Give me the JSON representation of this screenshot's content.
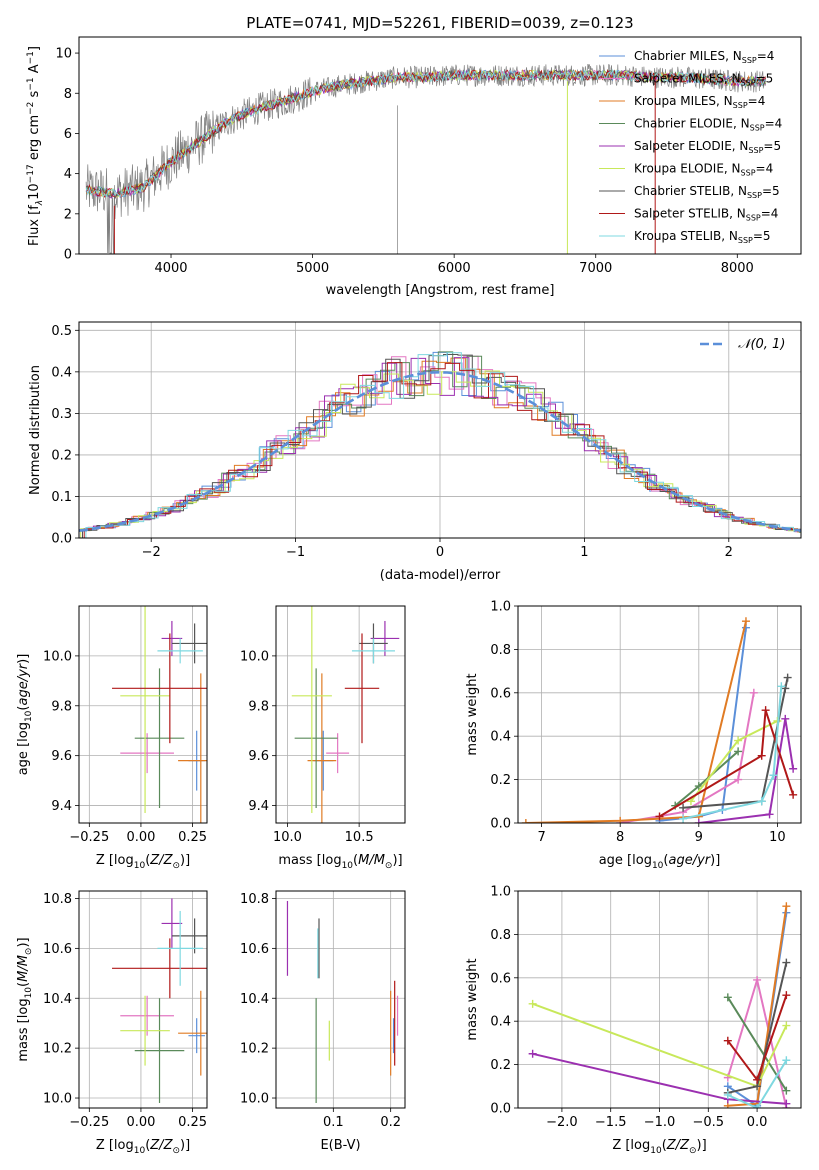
{
  "figure_title": "PLATE=0741, MJD=52261, FIBERID=0039, z=0.123",
  "colors": {
    "Chabrier MILES": "#5b8fd9",
    "Salpeter MILES": "#e377c2",
    "Kroupa MILES": "#e07b24",
    "Chabrier ELODIE": "#5a8a5a",
    "Salpeter ELODIE": "#9b30b0",
    "Kroupa ELODIE": "#c8e85a",
    "Chabrier STELIB": "#555555",
    "Salpeter STELIB": "#b01818",
    "Kroupa STELIB": "#7fd8e0",
    "data": "#808080",
    "normal": "#5b8fd9"
  },
  "chart_data": [
    {
      "id": "spectrum",
      "type": "line",
      "xlabel": "wavelength [Angstrom, rest frame]",
      "ylabel": "Flux [f_λ 10^-17 erg cm^-2 s^-1 A^-1]",
      "xlim": [
        3350,
        8450
      ],
      "ylim": [
        0,
        10.8
      ],
      "xticks": [
        4000,
        5000,
        6000,
        7000,
        8000
      ],
      "yticks": [
        0,
        2,
        4,
        6,
        8,
        10
      ],
      "legend_position": "upper-right",
      "data_spectrum_envelope": {
        "x": [
          3400,
          3600,
          3800,
          4000,
          4200,
          4400,
          4600,
          4800,
          5000,
          5200,
          5400,
          5600,
          5800,
          6000,
          6200,
          6400,
          6600,
          6800,
          7000,
          7200,
          7400,
          7600,
          7800,
          8000,
          8200
        ],
        "y": [
          3.2,
          3.0,
          3.3,
          4.6,
          5.6,
          6.6,
          7.2,
          7.6,
          8.1,
          8.4,
          8.6,
          8.8,
          8.8,
          8.9,
          8.9,
          8.9,
          8.9,
          8.9,
          8.9,
          8.9,
          8.8,
          8.8,
          8.7,
          8.6,
          8.6
        ]
      },
      "series": [
        {
          "name": "Chabrier MILES, N_SSP=4",
          "label_main": "Chabrier MILES, N",
          "label_sub": "SSP",
          "label_tail": "=4"
        },
        {
          "name": "Salpeter MILES, N_SSP=5",
          "label_main": "Salpeter MILES, N",
          "label_sub": "SSP",
          "label_tail": "=5"
        },
        {
          "name": "Kroupa MILES, N_SSP=4",
          "label_main": "Kroupa MILES, N",
          "label_sub": "SSP",
          "label_tail": "=4"
        },
        {
          "name": "Chabrier ELODIE, N_SSP=4",
          "label_main": "Chabrier ELODIE, N",
          "label_sub": "SSP",
          "label_tail": "=4"
        },
        {
          "name": "Salpeter ELODIE, N_SSP=5",
          "label_main": "Salpeter ELODIE, N",
          "label_sub": "SSP",
          "label_tail": "=5"
        },
        {
          "name": "Kroupa ELODIE, N_SSP=4",
          "label_main": "Kroupa ELODIE, N",
          "label_sub": "SSP",
          "label_tail": "=4"
        },
        {
          "name": "Chabrier STELIB, N_SSP=5",
          "label_main": "Chabrier STELIB, N",
          "label_sub": "SSP",
          "label_tail": "=5"
        },
        {
          "name": "Salpeter STELIB, N_SSP=4",
          "label_main": "Salpeter STELIB, N",
          "label_sub": "SSP",
          "label_tail": "=4"
        },
        {
          "name": "Kroupa STELIB, N_SSP=5",
          "label_main": "Kroupa STELIB, N",
          "label_sub": "SSP",
          "label_tail": "=5"
        }
      ]
    },
    {
      "id": "residuals",
      "type": "line",
      "xlabel": "(data-model)/error",
      "ylabel": "Normed distribution",
      "xlim": [
        -2.5,
        2.5
      ],
      "ylim": [
        0,
        0.52
      ],
      "xticks": [
        -2,
        -1,
        0,
        1,
        2
      ],
      "yticks": [
        0.0,
        0.1,
        0.2,
        0.3,
        0.4,
        0.5
      ],
      "grid": true,
      "legend_position": "upper-right",
      "legend_label": "𝒩(0, 1)",
      "reference_curve": "normal(0,1) density"
    },
    {
      "id": "age_vs_Z",
      "type": "scatter",
      "xlabel": "Z [log10(Z/Z⊙)]",
      "ylabel": "age  [log10(age/yr)]",
      "xlim": [
        -0.3,
        0.32
      ],
      "ylim": [
        9.33,
        10.2
      ],
      "xticks": [
        -0.25,
        0.0,
        0.25
      ],
      "yticks": [
        9.4,
        9.6,
        9.8,
        10.0
      ],
      "grid": true,
      "errorbars": [
        {
          "series": "Chabrier MILES",
          "x": 0.27,
          "xerr": 0.04,
          "y": 9.58,
          "yerr": 0.12
        },
        {
          "series": "Salpeter MILES",
          "x": 0.03,
          "xerr": 0.13,
          "y": 9.61,
          "yerr": 0.08
        },
        {
          "series": "Kroupa MILES",
          "x": 0.29,
          "xerr": 0.11,
          "y": 9.58,
          "yerr": 0.35
        },
        {
          "series": "Chabrier ELODIE",
          "x": 0.09,
          "xerr": 0.12,
          "y": 9.67,
          "yerr": 0.28
        },
        {
          "series": "Salpeter ELODIE",
          "x": 0.15,
          "xerr": 0.05,
          "y": 10.07,
          "yerr": 0.07
        },
        {
          "series": "Kroupa ELODIE",
          "x": 0.02,
          "xerr": 0.12,
          "y": 9.84,
          "yerr": 0.47
        },
        {
          "series": "Chabrier STELIB",
          "x": 0.26,
          "xerr": 0.11,
          "y": 10.05,
          "yerr": 0.08
        },
        {
          "series": "Salpeter STELIB",
          "x": 0.14,
          "xerr": 0.28,
          "y": 9.87,
          "yerr": 0.22
        },
        {
          "series": "Kroupa STELIB",
          "x": 0.19,
          "xerr": 0.11,
          "y": 10.02,
          "yerr": 0.05
        }
      ]
    },
    {
      "id": "age_vs_mass",
      "type": "scatter",
      "xlabel": "mass [log10(M/M⊙)]",
      "ylabel": "",
      "xlim": [
        9.92,
        10.82
      ],
      "ylim": [
        9.33,
        10.2
      ],
      "xticks": [
        10.0,
        10.5
      ],
      "yticks": [
        9.4,
        9.6,
        9.8,
        10.0
      ],
      "grid": true,
      "errorbars": [
        {
          "series": "Chabrier MILES",
          "x": 10.25,
          "xerr": 0.07,
          "y": 9.58,
          "yerr": 0.12
        },
        {
          "series": "Salpeter MILES",
          "x": 10.35,
          "xerr": 0.08,
          "y": 9.61,
          "yerr": 0.08
        },
        {
          "series": "Kroupa MILES",
          "x": 10.24,
          "xerr": 0.1,
          "y": 9.58,
          "yerr": 0.35
        },
        {
          "series": "Chabrier ELODIE",
          "x": 10.2,
          "xerr": 0.15,
          "y": 9.67,
          "yerr": 0.28
        },
        {
          "series": "Salpeter ELODIE",
          "x": 10.68,
          "xerr": 0.1,
          "y": 10.07,
          "yerr": 0.07
        },
        {
          "series": "Kroupa ELODIE",
          "x": 10.17,
          "xerr": 0.14,
          "y": 9.84,
          "yerr": 0.47
        },
        {
          "series": "Chabrier STELIB",
          "x": 10.6,
          "xerr": 0.1,
          "y": 10.05,
          "yerr": 0.08
        },
        {
          "series": "Salpeter STELIB",
          "x": 10.52,
          "xerr": 0.12,
          "y": 9.87,
          "yerr": 0.22
        },
        {
          "series": "Kroupa STELIB",
          "x": 10.6,
          "xerr": 0.15,
          "y": 10.02,
          "yerr": 0.05
        }
      ]
    },
    {
      "id": "mass_weight_vs_age",
      "type": "line",
      "xlabel": "age  [log10(age/yr)]",
      "ylabel": "mass weight",
      "xlim": [
        6.7,
        10.3
      ],
      "ylim": [
        0,
        1.0
      ],
      "xticks": [
        7,
        8,
        9,
        10
      ],
      "yticks": [
        0.0,
        0.2,
        0.4,
        0.6,
        0.8,
        1.0
      ],
      "grid": true,
      "series": [
        {
          "name": "Chabrier MILES",
          "x": [
            8.5,
            9.0,
            9.3,
            9.6
          ],
          "y": [
            0.01,
            0.03,
            0.06,
            0.9
          ]
        },
        {
          "name": "Salpeter MILES",
          "x": [
            8.0,
            8.8,
            9.5,
            9.7
          ],
          "y": [
            0.0,
            0.05,
            0.2,
            0.6
          ]
        },
        {
          "name": "Kroupa MILES",
          "x": [
            6.8,
            8.0,
            9.0,
            9.6
          ],
          "y": [
            0.0,
            0.01,
            0.03,
            0.93
          ]
        },
        {
          "name": "Chabrier ELODIE",
          "x": [
            8.7,
            9.0,
            9.5
          ],
          "y": [
            0.08,
            0.17,
            0.33
          ]
        },
        {
          "name": "Salpeter ELODIE",
          "x": [
            9.0,
            9.9,
            10.1,
            10.2
          ],
          "y": [
            0.0,
            0.04,
            0.48,
            0.25
          ]
        },
        {
          "name": "Kroupa ELODIE",
          "x": [
            8.9,
            9.5,
            10.0
          ],
          "y": [
            0.1,
            0.38,
            0.47
          ]
        },
        {
          "name": "Chabrier STELIB",
          "x": [
            8.8,
            9.8,
            10.1,
            10.13
          ],
          "y": [
            0.07,
            0.1,
            0.62,
            0.67
          ]
        },
        {
          "name": "Salpeter STELIB",
          "x": [
            8.5,
            9.8,
            9.85,
            10.2
          ],
          "y": [
            0.03,
            0.31,
            0.52,
            0.13
          ]
        },
        {
          "name": "Kroupa STELIB",
          "x": [
            8.8,
            9.8,
            9.95,
            10.05
          ],
          "y": [
            0.02,
            0.1,
            0.22,
            0.63
          ]
        }
      ]
    },
    {
      "id": "mass_vs_Z",
      "type": "scatter",
      "xlabel": "Z [log10(Z/Z⊙)]",
      "ylabel": "mass [log10(M/M⊙)]",
      "xlim": [
        -0.3,
        0.32
      ],
      "ylim": [
        9.96,
        10.83
      ],
      "xticks": [
        -0.25,
        0.0,
        0.25
      ],
      "yticks": [
        10.0,
        10.2,
        10.4,
        10.6,
        10.8
      ],
      "grid": true,
      "errorbars": [
        {
          "series": "Chabrier MILES",
          "x": 0.27,
          "xerr": 0.04,
          "y": 10.25,
          "yerr": 0.07
        },
        {
          "series": "Salpeter MILES",
          "x": 0.03,
          "xerr": 0.13,
          "y": 10.33,
          "yerr": 0.08
        },
        {
          "series": "Kroupa MILES",
          "x": 0.29,
          "xerr": 0.11,
          "y": 10.26,
          "yerr": 0.17
        },
        {
          "series": "Chabrier ELODIE",
          "x": 0.09,
          "xerr": 0.12,
          "y": 10.19,
          "yerr": 0.21
        },
        {
          "series": "Salpeter ELODIE",
          "x": 0.15,
          "xerr": 0.05,
          "y": 10.7,
          "yerr": 0.1
        },
        {
          "series": "Kroupa ELODIE",
          "x": 0.02,
          "xerr": 0.12,
          "y": 10.27,
          "yerr": 0.14
        },
        {
          "series": "Chabrier STELIB",
          "x": 0.26,
          "xerr": 0.11,
          "y": 10.65,
          "yerr": 0.07
        },
        {
          "series": "Salpeter STELIB",
          "x": 0.14,
          "xerr": 0.28,
          "y": 10.52,
          "yerr": 0.12
        },
        {
          "series": "Kroupa STELIB",
          "x": 0.19,
          "xerr": 0.11,
          "y": 10.6,
          "yerr": 0.15
        }
      ]
    },
    {
      "id": "mass_vs_EBV",
      "type": "scatter",
      "xlabel": "E(B-V)",
      "ylabel": "",
      "xlim": [
        0.0,
        0.225
      ],
      "ylim": [
        9.96,
        10.83
      ],
      "xticks": [
        0.1,
        0.2
      ],
      "yticks": [
        10.0,
        10.2,
        10.4,
        10.6,
        10.8
      ],
      "grid": true,
      "errorbars": [
        {
          "series": "Chabrier MILES",
          "x": 0.205,
          "y": 10.25,
          "yerr": 0.07
        },
        {
          "series": "Salpeter MILES",
          "x": 0.212,
          "y": 10.33,
          "yerr": 0.08
        },
        {
          "series": "Kroupa MILES",
          "x": 0.2,
          "y": 10.26,
          "yerr": 0.17
        },
        {
          "series": "Chabrier ELODIE",
          "x": 0.07,
          "y": 10.19,
          "yerr": 0.21
        },
        {
          "series": "Salpeter ELODIE",
          "x": 0.02,
          "y": 10.64,
          "yerr": 0.15
        },
        {
          "series": "Kroupa ELODIE",
          "x": 0.093,
          "y": 10.23,
          "yerr": 0.08
        },
        {
          "series": "Chabrier STELIB",
          "x": 0.075,
          "y": 10.6,
          "yerr": 0.12
        },
        {
          "series": "Salpeter STELIB",
          "x": 0.207,
          "y": 10.3,
          "yerr": 0.17
        },
        {
          "series": "Kroupa STELIB",
          "x": 0.073,
          "y": 10.58,
          "yerr": 0.1
        }
      ]
    },
    {
      "id": "mass_weight_vs_Z",
      "type": "line",
      "xlabel": "Z [log10(Z/Z⊙)]",
      "ylabel": "mass weight",
      "xlim": [
        -2.45,
        0.45
      ],
      "ylim": [
        0,
        1.0
      ],
      "xticks": [
        -2.0,
        -1.5,
        -1.0,
        -0.5,
        0.0
      ],
      "yticks": [
        0.0,
        0.2,
        0.4,
        0.6,
        0.8,
        1.0
      ],
      "grid": true,
      "series": [
        {
          "name": "Chabrier MILES",
          "x": [
            -0.3,
            0.0,
            0.3
          ],
          "y": [
            0.1,
            0.01,
            0.9
          ]
        },
        {
          "name": "Salpeter MILES",
          "x": [
            -0.3,
            0.0,
            0.3
          ],
          "y": [
            0.14,
            0.59,
            0.0
          ]
        },
        {
          "name": "Kroupa MILES",
          "x": [
            -0.3,
            0.0,
            0.3
          ],
          "y": [
            0.01,
            0.02,
            0.93
          ]
        },
        {
          "name": "Chabrier ELODIE",
          "x": [
            -0.3,
            0.3
          ],
          "y": [
            0.51,
            0.08
          ]
        },
        {
          "name": "Salpeter ELODIE",
          "x": [
            -2.3,
            -0.3,
            0.3
          ],
          "y": [
            0.25,
            0.04,
            0.02
          ]
        },
        {
          "name": "Kroupa ELODIE",
          "x": [
            -2.3,
            0.0,
            0.3
          ],
          "y": [
            0.48,
            0.1,
            0.38
          ]
        },
        {
          "name": "Chabrier STELIB",
          "x": [
            -0.3,
            0.0,
            0.3
          ],
          "y": [
            0.07,
            0.1,
            0.67
          ]
        },
        {
          "name": "Salpeter STELIB",
          "x": [
            -0.3,
            0.0,
            0.3
          ],
          "y": [
            0.31,
            0.13,
            0.52
          ]
        },
        {
          "name": "Kroupa STELIB",
          "x": [
            -0.3,
            0.0,
            0.3
          ],
          "y": [
            0.06,
            0.0,
            0.22
          ]
        }
      ]
    }
  ]
}
